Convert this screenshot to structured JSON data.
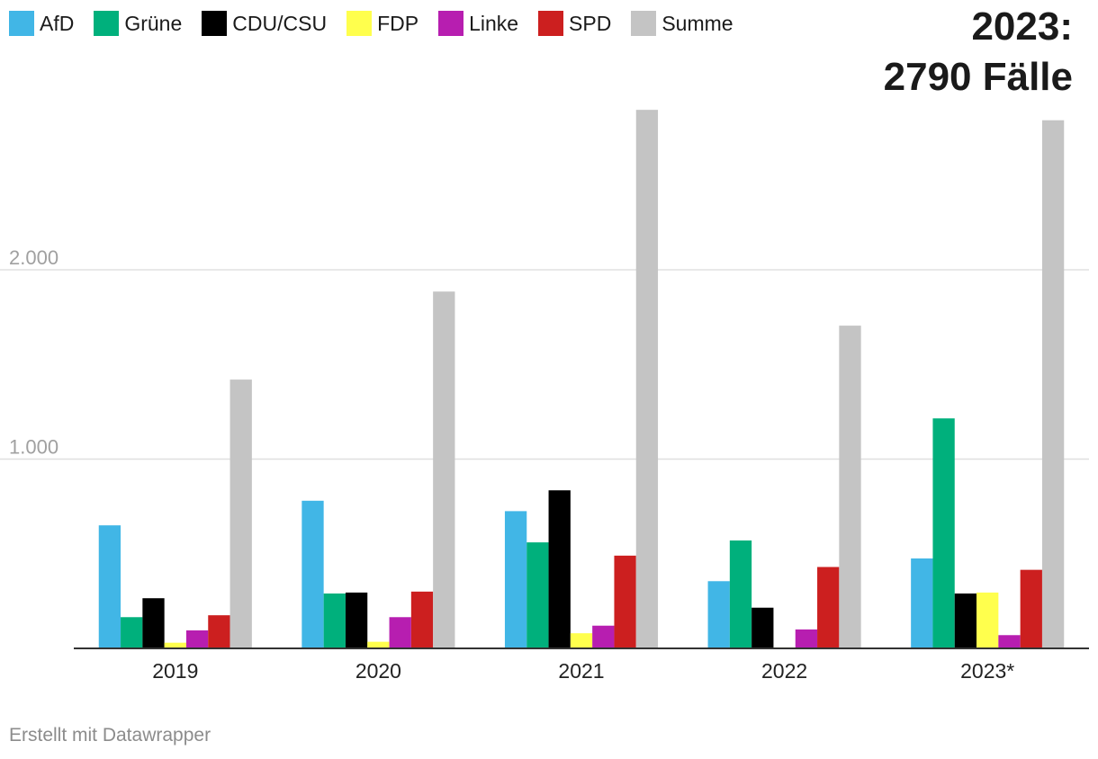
{
  "annotation": {
    "line1": "2023:",
    "line2": "2790 Fälle"
  },
  "footer": "Erstellt mit Datawrapper",
  "chart_data": {
    "type": "bar",
    "categories": [
      "2019",
      "2020",
      "2021",
      "2022",
      "2023*"
    ],
    "series": [
      {
        "name": "AfD",
        "color": "#41b6e6",
        "values": [
          650,
          780,
          725,
          355,
          475
        ]
      },
      {
        "name": "Grüne",
        "color": "#00b07c",
        "values": [
          165,
          290,
          560,
          570,
          1215
        ]
      },
      {
        "name": "CDU/CSU",
        "color": "#000000",
        "values": [
          265,
          295,
          835,
          215,
          290
        ]
      },
      {
        "name": "FDP",
        "color": "#ffff4d",
        "values": [
          30,
          35,
          80,
          5,
          295
        ]
      },
      {
        "name": "Linke",
        "color": "#b71eb0",
        "values": [
          95,
          165,
          120,
          100,
          70
        ]
      },
      {
        "name": "SPD",
        "color": "#cc1f1f",
        "values": [
          175,
          300,
          490,
          430,
          415
        ]
      },
      {
        "name": "Summe",
        "color": "#c4c4c4",
        "values": [
          1420,
          1885,
          2845,
          1705,
          2790
        ]
      }
    ],
    "yticks": [
      {
        "value": 1000,
        "label": "1.000"
      },
      {
        "value": 2000,
        "label": "2.000"
      }
    ],
    "ylim": [
      0,
      3000
    ],
    "grid": true,
    "legend": "top-left"
  }
}
